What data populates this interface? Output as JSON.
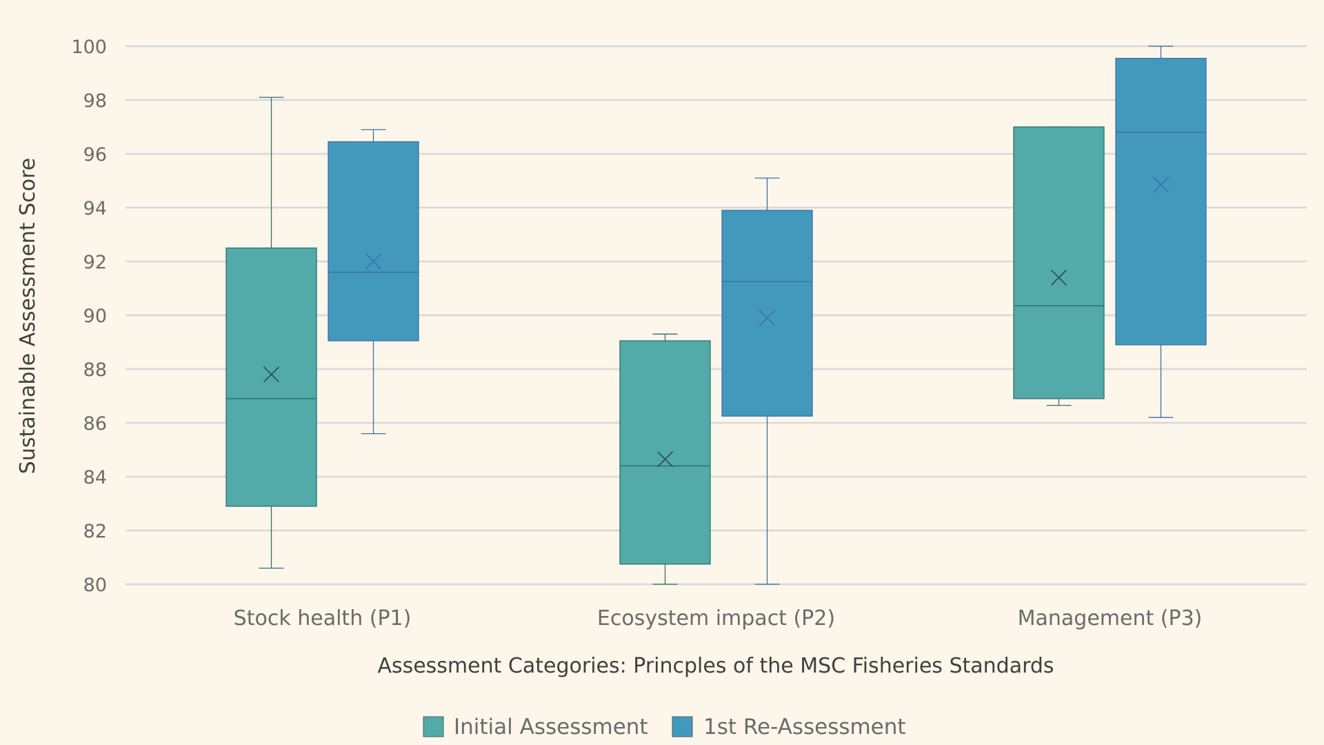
{
  "chart_data": {
    "type": "boxplot",
    "title": "",
    "xlabel": "Assessment Categories: Princples of the MSC Fisheries Standards",
    "ylabel": "Sustainable Assessment Score",
    "ylim": [
      80,
      100
    ],
    "yticks": [
      80,
      82,
      84,
      86,
      88,
      90,
      92,
      94,
      96,
      98,
      100
    ],
    "grid": true,
    "legend_position": "bottom",
    "categories": [
      "Stock health (P1)",
      "Ecosystem impact (P2)",
      "Management (P3)"
    ],
    "series": [
      {
        "name": "Initial Assessment",
        "color": "#52aaa9",
        "boxes": [
          {
            "min": 80.6,
            "q1": 82.9,
            "median": 86.9,
            "q3": 92.5,
            "max": 98.1,
            "mean": 87.8
          },
          {
            "min": 80.0,
            "q1": 80.75,
            "median": 84.4,
            "q3": 89.05,
            "max": 89.3,
            "mean": 84.65
          },
          {
            "min": 86.65,
            "q1": 86.9,
            "median": 90.35,
            "q3": 97.0,
            "max": 97.0,
            "mean": 91.4
          }
        ]
      },
      {
        "name": "1st Re-Assessment",
        "color": "#4399bc",
        "boxes": [
          {
            "min": 85.6,
            "q1": 89.05,
            "median": 91.6,
            "q3": 96.45,
            "max": 96.9,
            "mean": 92.0
          },
          {
            "min": 80.0,
            "q1": 86.25,
            "median": 91.25,
            "q3": 93.9,
            "max": 95.1,
            "mean": 89.9
          },
          {
            "min": 86.2,
            "q1": 88.9,
            "median": 96.8,
            "q3": 99.55,
            "max": 100.0,
            "mean": 94.85
          }
        ]
      }
    ]
  }
}
